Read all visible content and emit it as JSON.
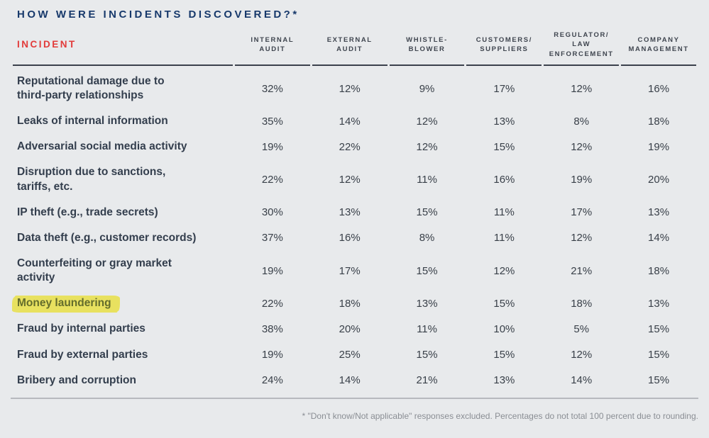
{
  "colors": {
    "background": "#e8eaec",
    "title_navy": "#17396b",
    "incident_red": "#e23b3a",
    "highlight_yellow": "#e8e15f",
    "header_rule_dark": "#3b414c",
    "footer_rule_gray": "#b7b9be"
  },
  "chart_data": {
    "type": "table",
    "title": "HOW WERE INCIDENTS DISCOVERED?*",
    "row_header": "INCIDENT",
    "columns": [
      [
        "INTERNAL",
        "AUDIT"
      ],
      [
        "EXTERNAL",
        "AUDIT"
      ],
      [
        "WHISTLE-",
        "BLOWER"
      ],
      [
        "CUSTOMERS/",
        "SUPPLIERS"
      ],
      [
        "REGULATOR/",
        "LAW",
        "ENFORCEMENT"
      ],
      [
        "COMPANY",
        "MANAGEMENT"
      ]
    ],
    "rows": [
      {
        "label": "Reputational damage due to\nthird-party relationships",
        "highlight": false,
        "values": [
          "32%",
          "12%",
          "9%",
          "17%",
          "12%",
          "16%"
        ]
      },
      {
        "label": "Leaks of internal information",
        "highlight": false,
        "values": [
          "35%",
          "14%",
          "12%",
          "13%",
          "8%",
          "18%"
        ]
      },
      {
        "label": "Adversarial social media activity",
        "highlight": false,
        "values": [
          "19%",
          "22%",
          "12%",
          "15%",
          "12%",
          "19%"
        ]
      },
      {
        "label": "Disruption due to sanctions,\ntariffs, etc.",
        "highlight": false,
        "values": [
          "22%",
          "12%",
          "11%",
          "16%",
          "19%",
          "20%"
        ]
      },
      {
        "label": "IP theft (e.g., trade secrets)",
        "highlight": false,
        "values": [
          "30%",
          "13%",
          "15%",
          "11%",
          "17%",
          "13%"
        ]
      },
      {
        "label": "Data theft (e.g., customer records)",
        "highlight": false,
        "values": [
          "37%",
          "16%",
          "8%",
          "11%",
          "12%",
          "14%"
        ]
      },
      {
        "label": "Counterfeiting or gray market\nactivity",
        "highlight": false,
        "values": [
          "19%",
          "17%",
          "15%",
          "12%",
          "21%",
          "18%"
        ]
      },
      {
        "label": "Money laundering",
        "highlight": true,
        "values": [
          "22%",
          "18%",
          "13%",
          "15%",
          "18%",
          "13%"
        ]
      },
      {
        "label": "Fraud by internal parties",
        "highlight": false,
        "values": [
          "38%",
          "20%",
          "11%",
          "10%",
          "5%",
          "15%"
        ]
      },
      {
        "label": "Fraud by external parties",
        "highlight": false,
        "values": [
          "19%",
          "25%",
          "15%",
          "15%",
          "12%",
          "15%"
        ]
      },
      {
        "label": "Bribery and corruption",
        "highlight": false,
        "values": [
          "24%",
          "14%",
          "21%",
          "13%",
          "14%",
          "15%"
        ]
      }
    ],
    "footnote": "* \"Don't know/Not applicable\" responses excluded. Percentages do not total 100 percent due to rounding."
  }
}
